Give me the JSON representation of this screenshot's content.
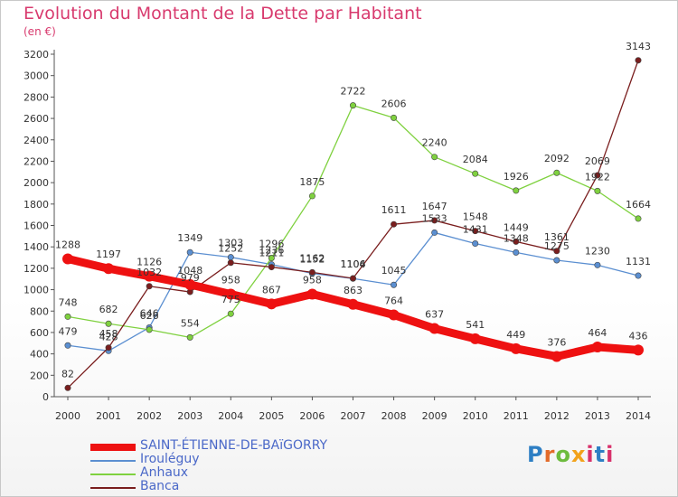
{
  "header": {
    "title": "Evolution du Montant de la Dette par Habitant",
    "subtitle": "(en €)"
  },
  "logo": {
    "text": "Proxiti"
  },
  "chart_data": {
    "type": "line",
    "title": "Evolution du Montant de la Dette par Habitant",
    "subtitle": "(en €)",
    "x": [
      2000,
      2001,
      2002,
      2003,
      2004,
      2005,
      2006,
      2007,
      2008,
      2009,
      2010,
      2011,
      2012,
      2013,
      2014
    ],
    "ylim": [
      0,
      3200
    ],
    "yticks": [
      0,
      200,
      400,
      600,
      800,
      1000,
      1200,
      1400,
      1600,
      1800,
      2000,
      2200,
      2400,
      2600,
      2800,
      3000,
      3200
    ],
    "grid": false,
    "legend_position": "bottom-left",
    "series": [
      {
        "name": "Irouléguy",
        "color": "#5b8fd1",
        "values": [
          479,
          428,
          646,
          1349,
          1303,
          1236,
          1152,
          1104,
          1045,
          1533,
          1431,
          1348,
          1275,
          1230,
          1131
        ]
      },
      {
        "name": "Anhaux",
        "color": "#7fd13f",
        "values": [
          748,
          682,
          626,
          554,
          775,
          1296,
          1875,
          2722,
          2606,
          2240,
          2084,
          1926,
          2092,
          1922,
          1664
        ]
      },
      {
        "name": "Banca",
        "color": "#7a1e1e",
        "values": [
          82,
          458,
          1032,
          979,
          1252,
          1211,
          1162,
          1106,
          1611,
          1647,
          1548,
          1449,
          1361,
          2069,
          3143
        ]
      },
      {
        "name": "SAINT-ÉTIENNE-DE-BAïGORRY",
        "color": "#ee1111",
        "values": [
          1288,
          1197,
          1126,
          1048,
          958,
          867,
          958,
          863,
          764,
          637,
          541,
          449,
          376,
          464,
          436
        ]
      }
    ]
  }
}
